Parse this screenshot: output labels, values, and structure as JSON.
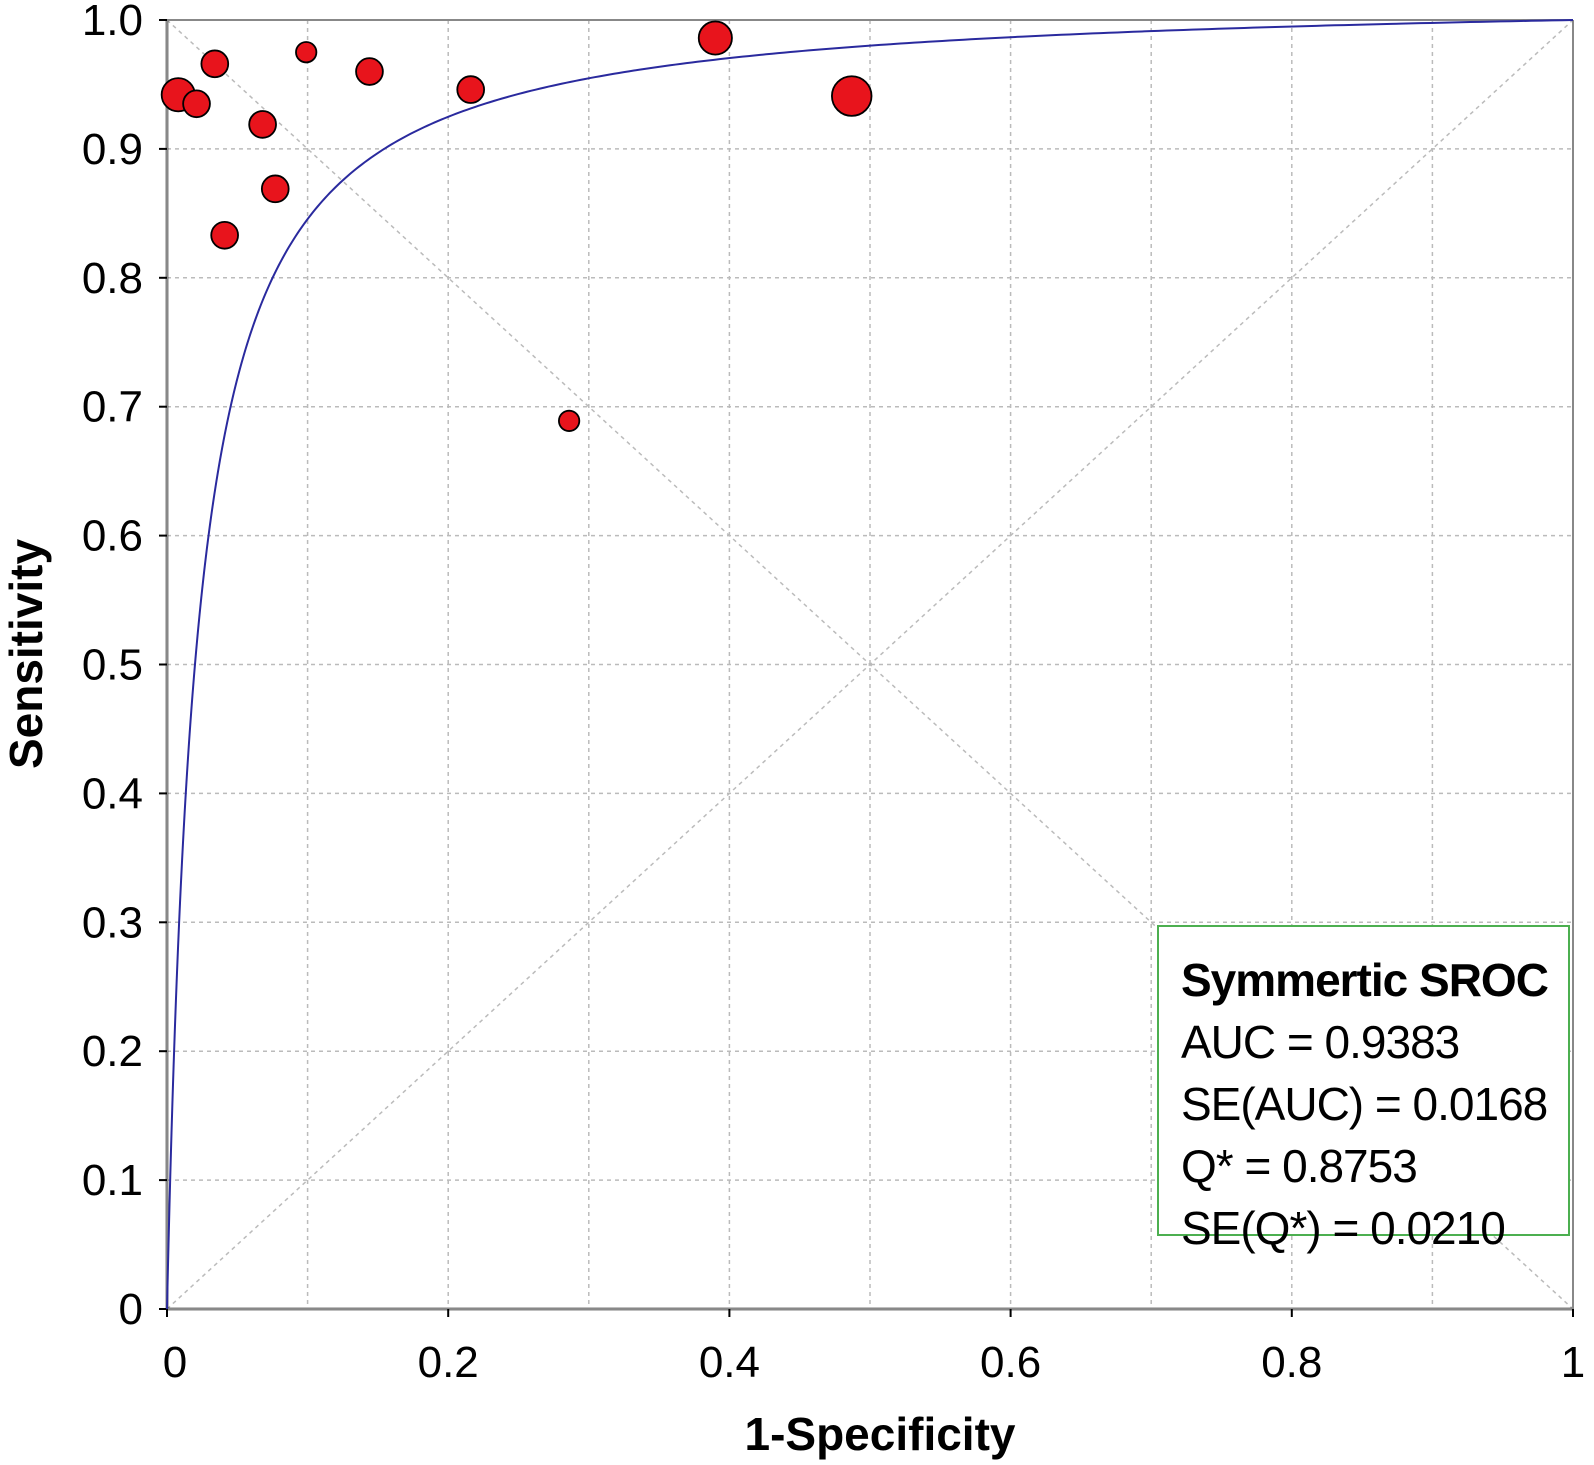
{
  "chart_data": {
    "type": "scatter",
    "title": "",
    "xlabel": "1-Specificity",
    "ylabel": "Sensitivity",
    "xlim": [
      0,
      1
    ],
    "ylim": [
      0,
      1
    ],
    "x_ticks": [
      "0",
      "0.2",
      "0.4",
      "0.6",
      "0.8",
      "1"
    ],
    "y_ticks": [
      "0",
      "0.1",
      "0.2",
      "0.3",
      "0.4",
      "0.5",
      "0.6",
      "0.7",
      "0.8",
      "0.9",
      "1.0"
    ],
    "grid": true,
    "points": [
      {
        "x": 0.008,
        "y": 0.942,
        "weight": 3
      },
      {
        "x": 0.021,
        "y": 0.935,
        "weight": 2
      },
      {
        "x": 0.034,
        "y": 0.966,
        "weight": 2
      },
      {
        "x": 0.041,
        "y": 0.833,
        "weight": 2
      },
      {
        "x": 0.068,
        "y": 0.919,
        "weight": 2
      },
      {
        "x": 0.077,
        "y": 0.869,
        "weight": 2
      },
      {
        "x": 0.099,
        "y": 0.975,
        "weight": 1
      },
      {
        "x": 0.144,
        "y": 0.96,
        "weight": 2
      },
      {
        "x": 0.216,
        "y": 0.946,
        "weight": 2
      },
      {
        "x": 0.286,
        "y": 0.689,
        "weight": 1
      },
      {
        "x": 0.39,
        "y": 0.986,
        "weight": 3
      },
      {
        "x": 0.487,
        "y": 0.941,
        "weight": 4
      }
    ],
    "sroc_curve": {
      "type": "symmetric",
      "auc": 0.9383,
      "q_star": 0.8753
    },
    "reference_lines": [
      "y = x",
      "y = 1 - x"
    ],
    "colors": {
      "points": "#e8141c",
      "curve": "#2a2a9e",
      "grid": "#bbbbbb",
      "legend_border": "#4caf50"
    },
    "legend": {
      "position": "bottom-right",
      "title": "Symmertic SROC",
      "lines": [
        "AUC = 0.9383",
        "SE(AUC) = 0.0168",
        "Q* = 0.8753",
        "SE(Q*) = 0.0210"
      ]
    }
  }
}
